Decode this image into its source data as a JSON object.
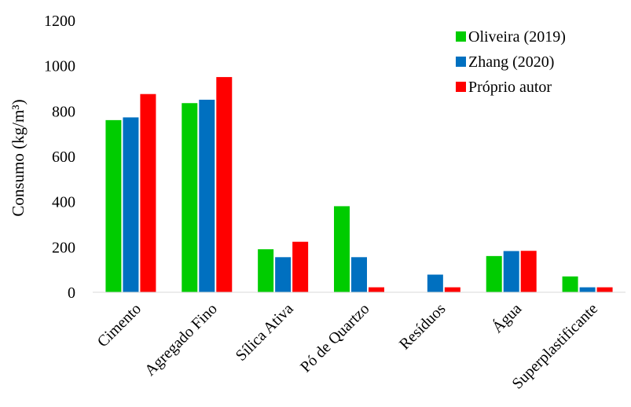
{
  "chart_data": {
    "type": "bar",
    "title": "",
    "xlabel": "",
    "ylabel": "Consumo (kg/m³)",
    "ylim": [
      0,
      1200
    ],
    "yticks": [
      0,
      200,
      400,
      600,
      800,
      1000,
      1200
    ],
    "grid": false,
    "legend_position": "top-right",
    "categories": [
      "Cimento",
      "Agregado Fino",
      "Sílica Ativa",
      "Pó de Quartzo",
      "Resíduos",
      "Água",
      "Superplastificante"
    ],
    "series": [
      {
        "name": "Oliveira (2019)",
        "color": "#00cc00",
        "values": [
          760,
          835,
          190,
          380,
          0,
          160,
          70
        ]
      },
      {
        "name": "Zhang (2020)",
        "color": "#0070c0",
        "values": [
          772,
          850,
          155,
          155,
          78,
          182,
          22
        ]
      },
      {
        "name": "Próprio autor",
        "color": "#ff0000",
        "values": [
          875,
          950,
          223,
          22,
          22,
          183,
          22
        ]
      }
    ]
  }
}
